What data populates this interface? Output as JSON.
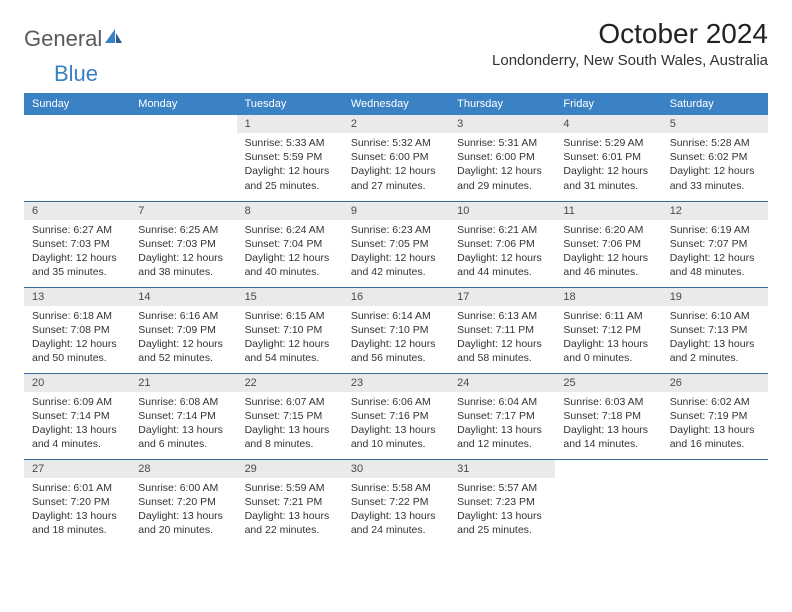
{
  "logo": {
    "text1": "General",
    "text2": "Blue"
  },
  "title": "October 2024",
  "location": "Londonderry, New South Wales, Australia",
  "weekdays": [
    "Sunday",
    "Monday",
    "Tuesday",
    "Wednesday",
    "Thursday",
    "Friday",
    "Saturday"
  ],
  "colors": {
    "header_bg": "#3b82c4",
    "header_text": "#ffffff",
    "daynum_bg": "#eaeaea",
    "border": "#3b6a9e",
    "logo_gray": "#5a5a5a",
    "logo_blue": "#3b7fc4"
  },
  "weeks": [
    [
      {
        "empty": true
      },
      {
        "empty": true
      },
      {
        "day": "1",
        "sunrise": "Sunrise: 5:33 AM",
        "sunset": "Sunset: 5:59 PM",
        "daylight": "Daylight: 12 hours and 25 minutes."
      },
      {
        "day": "2",
        "sunrise": "Sunrise: 5:32 AM",
        "sunset": "Sunset: 6:00 PM",
        "daylight": "Daylight: 12 hours and 27 minutes."
      },
      {
        "day": "3",
        "sunrise": "Sunrise: 5:31 AM",
        "sunset": "Sunset: 6:00 PM",
        "daylight": "Daylight: 12 hours and 29 minutes."
      },
      {
        "day": "4",
        "sunrise": "Sunrise: 5:29 AM",
        "sunset": "Sunset: 6:01 PM",
        "daylight": "Daylight: 12 hours and 31 minutes."
      },
      {
        "day": "5",
        "sunrise": "Sunrise: 5:28 AM",
        "sunset": "Sunset: 6:02 PM",
        "daylight": "Daylight: 12 hours and 33 minutes."
      }
    ],
    [
      {
        "day": "6",
        "sunrise": "Sunrise: 6:27 AM",
        "sunset": "Sunset: 7:03 PM",
        "daylight": "Daylight: 12 hours and 35 minutes."
      },
      {
        "day": "7",
        "sunrise": "Sunrise: 6:25 AM",
        "sunset": "Sunset: 7:03 PM",
        "daylight": "Daylight: 12 hours and 38 minutes."
      },
      {
        "day": "8",
        "sunrise": "Sunrise: 6:24 AM",
        "sunset": "Sunset: 7:04 PM",
        "daylight": "Daylight: 12 hours and 40 minutes."
      },
      {
        "day": "9",
        "sunrise": "Sunrise: 6:23 AM",
        "sunset": "Sunset: 7:05 PM",
        "daylight": "Daylight: 12 hours and 42 minutes."
      },
      {
        "day": "10",
        "sunrise": "Sunrise: 6:21 AM",
        "sunset": "Sunset: 7:06 PM",
        "daylight": "Daylight: 12 hours and 44 minutes."
      },
      {
        "day": "11",
        "sunrise": "Sunrise: 6:20 AM",
        "sunset": "Sunset: 7:06 PM",
        "daylight": "Daylight: 12 hours and 46 minutes."
      },
      {
        "day": "12",
        "sunrise": "Sunrise: 6:19 AM",
        "sunset": "Sunset: 7:07 PM",
        "daylight": "Daylight: 12 hours and 48 minutes."
      }
    ],
    [
      {
        "day": "13",
        "sunrise": "Sunrise: 6:18 AM",
        "sunset": "Sunset: 7:08 PM",
        "daylight": "Daylight: 12 hours and 50 minutes."
      },
      {
        "day": "14",
        "sunrise": "Sunrise: 6:16 AM",
        "sunset": "Sunset: 7:09 PM",
        "daylight": "Daylight: 12 hours and 52 minutes."
      },
      {
        "day": "15",
        "sunrise": "Sunrise: 6:15 AM",
        "sunset": "Sunset: 7:10 PM",
        "daylight": "Daylight: 12 hours and 54 minutes."
      },
      {
        "day": "16",
        "sunrise": "Sunrise: 6:14 AM",
        "sunset": "Sunset: 7:10 PM",
        "daylight": "Daylight: 12 hours and 56 minutes."
      },
      {
        "day": "17",
        "sunrise": "Sunrise: 6:13 AM",
        "sunset": "Sunset: 7:11 PM",
        "daylight": "Daylight: 12 hours and 58 minutes."
      },
      {
        "day": "18",
        "sunrise": "Sunrise: 6:11 AM",
        "sunset": "Sunset: 7:12 PM",
        "daylight": "Daylight: 13 hours and 0 minutes."
      },
      {
        "day": "19",
        "sunrise": "Sunrise: 6:10 AM",
        "sunset": "Sunset: 7:13 PM",
        "daylight": "Daylight: 13 hours and 2 minutes."
      }
    ],
    [
      {
        "day": "20",
        "sunrise": "Sunrise: 6:09 AM",
        "sunset": "Sunset: 7:14 PM",
        "daylight": "Daylight: 13 hours and 4 minutes."
      },
      {
        "day": "21",
        "sunrise": "Sunrise: 6:08 AM",
        "sunset": "Sunset: 7:14 PM",
        "daylight": "Daylight: 13 hours and 6 minutes."
      },
      {
        "day": "22",
        "sunrise": "Sunrise: 6:07 AM",
        "sunset": "Sunset: 7:15 PM",
        "daylight": "Daylight: 13 hours and 8 minutes."
      },
      {
        "day": "23",
        "sunrise": "Sunrise: 6:06 AM",
        "sunset": "Sunset: 7:16 PM",
        "daylight": "Daylight: 13 hours and 10 minutes."
      },
      {
        "day": "24",
        "sunrise": "Sunrise: 6:04 AM",
        "sunset": "Sunset: 7:17 PM",
        "daylight": "Daylight: 13 hours and 12 minutes."
      },
      {
        "day": "25",
        "sunrise": "Sunrise: 6:03 AM",
        "sunset": "Sunset: 7:18 PM",
        "daylight": "Daylight: 13 hours and 14 minutes."
      },
      {
        "day": "26",
        "sunrise": "Sunrise: 6:02 AM",
        "sunset": "Sunset: 7:19 PM",
        "daylight": "Daylight: 13 hours and 16 minutes."
      }
    ],
    [
      {
        "day": "27",
        "sunrise": "Sunrise: 6:01 AM",
        "sunset": "Sunset: 7:20 PM",
        "daylight": "Daylight: 13 hours and 18 minutes."
      },
      {
        "day": "28",
        "sunrise": "Sunrise: 6:00 AM",
        "sunset": "Sunset: 7:20 PM",
        "daylight": "Daylight: 13 hours and 20 minutes."
      },
      {
        "day": "29",
        "sunrise": "Sunrise: 5:59 AM",
        "sunset": "Sunset: 7:21 PM",
        "daylight": "Daylight: 13 hours and 22 minutes."
      },
      {
        "day": "30",
        "sunrise": "Sunrise: 5:58 AM",
        "sunset": "Sunset: 7:22 PM",
        "daylight": "Daylight: 13 hours and 24 minutes."
      },
      {
        "day": "31",
        "sunrise": "Sunrise: 5:57 AM",
        "sunset": "Sunset: 7:23 PM",
        "daylight": "Daylight: 13 hours and 25 minutes."
      },
      {
        "empty": true
      },
      {
        "empty": true
      }
    ]
  ]
}
